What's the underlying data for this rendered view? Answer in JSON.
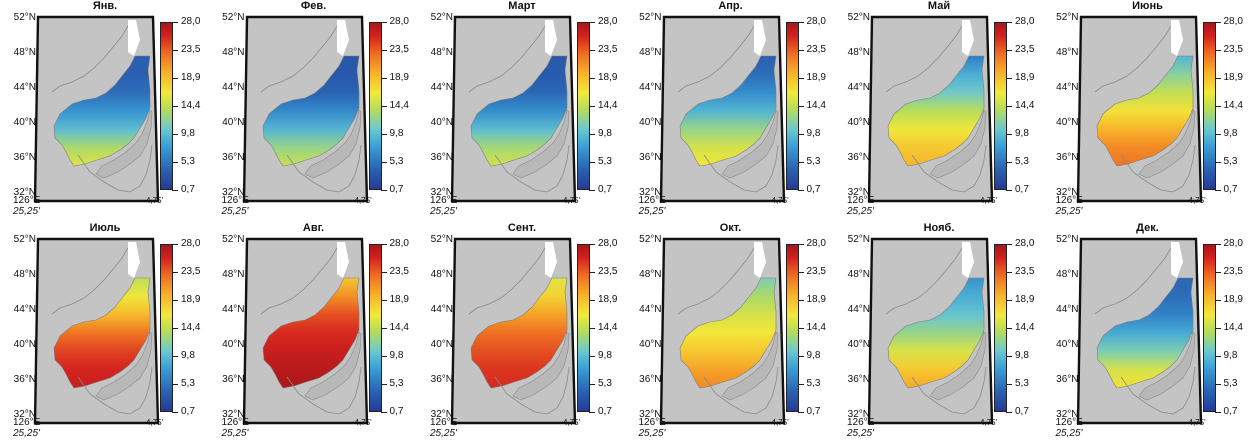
{
  "colors": {
    "land": "#c4c4c4",
    "frame": "#111111",
    "colorbar": [
      "#263a94",
      "#2a63b3",
      "#3aa0d6",
      "#6cc8cf",
      "#b6dc5a",
      "#f2e83a",
      "#f7b12a",
      "#ee6a22",
      "#d4231f",
      "#a8161a"
    ]
  },
  "lat_labels": [
    "52°N",
    "48°N",
    "44°N",
    "40°N",
    "36°N",
    "32°N"
  ],
  "lon_label": "126°E",
  "lon_sub_label": "25,25'",
  "right_label": "4,75'",
  "colorbar_ticks": [
    "28,0",
    "23,5",
    "18,9",
    "14,4",
    "9,8",
    "5,3",
    "0,7"
  ],
  "months": [
    {
      "title": "Янв.",
      "levels": [
        0.1,
        0.1,
        0.13,
        0.2,
        0.3,
        0.43,
        0.52
      ]
    },
    {
      "title": "Фев.",
      "levels": [
        0.08,
        0.08,
        0.11,
        0.18,
        0.28,
        0.4,
        0.48
      ]
    },
    {
      "title": "Март",
      "levels": [
        0.08,
        0.09,
        0.12,
        0.19,
        0.3,
        0.42,
        0.5
      ]
    },
    {
      "title": "Апр.",
      "levels": [
        0.1,
        0.13,
        0.19,
        0.28,
        0.4,
        0.5,
        0.56
      ]
    },
    {
      "title": "Май",
      "levels": [
        0.16,
        0.26,
        0.34,
        0.45,
        0.55,
        0.62,
        0.66
      ]
    },
    {
      "title": "Июнь",
      "levels": [
        0.28,
        0.38,
        0.47,
        0.57,
        0.66,
        0.73,
        0.76
      ]
    },
    {
      "title": "Июль",
      "levels": [
        0.46,
        0.55,
        0.65,
        0.76,
        0.84,
        0.89,
        0.92
      ]
    },
    {
      "title": "Авг.",
      "levels": [
        0.62,
        0.72,
        0.82,
        0.88,
        0.92,
        0.96,
        0.99
      ]
    },
    {
      "title": "Сент.",
      "levels": [
        0.52,
        0.6,
        0.69,
        0.77,
        0.82,
        0.86,
        0.88
      ]
    },
    {
      "title": "Окт.",
      "levels": [
        0.36,
        0.43,
        0.5,
        0.56,
        0.62,
        0.69,
        0.73
      ]
    },
    {
      "title": "Нояб.",
      "levels": [
        0.2,
        0.26,
        0.32,
        0.4,
        0.51,
        0.62,
        0.68
      ]
    },
    {
      "title": "Дек.",
      "levels": [
        0.12,
        0.13,
        0.17,
        0.25,
        0.36,
        0.5,
        0.57
      ]
    }
  ]
}
